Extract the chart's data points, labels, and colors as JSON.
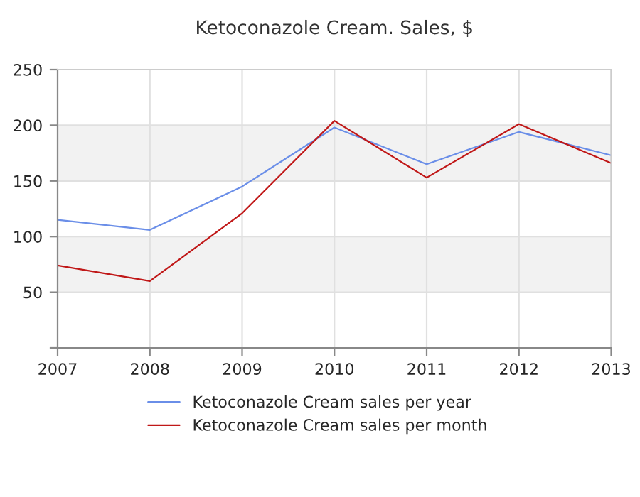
{
  "chart_data": {
    "type": "line",
    "title": "Ketoconazole Cream. Sales, $",
    "x": [
      2007,
      2008,
      2009,
      2010,
      2011,
      2012,
      2013
    ],
    "series": [
      {
        "name": "Ketoconazole Cream sales per year",
        "color": "#6a8ee8",
        "values": [
          115,
          106,
          145,
          198,
          165,
          194,
          173
        ]
      },
      {
        "name": "Ketoconazole Cream sales per month",
        "color": "#c01818",
        "values": [
          74,
          60,
          121,
          204,
          153,
          201,
          166
        ]
      }
    ],
    "xlim": [
      2007,
      2013
    ],
    "xticks": [
      2007,
      2008,
      2009,
      2010,
      2011,
      2012,
      2013
    ],
    "ylim": [
      0,
      250
    ],
    "yticks": [
      {
        "value": 0,
        "label": null
      },
      50,
      100,
      150,
      200,
      250
    ],
    "bands": [
      {
        "axis": "y",
        "from": 50,
        "to": 100,
        "color": "#f2f2f2"
      },
      {
        "axis": "y",
        "from": 150,
        "to": 200,
        "color": "#f2f2f2"
      }
    ],
    "grid": true,
    "legend": "bottom",
    "marker": "none",
    "line_style": "solid"
  }
}
